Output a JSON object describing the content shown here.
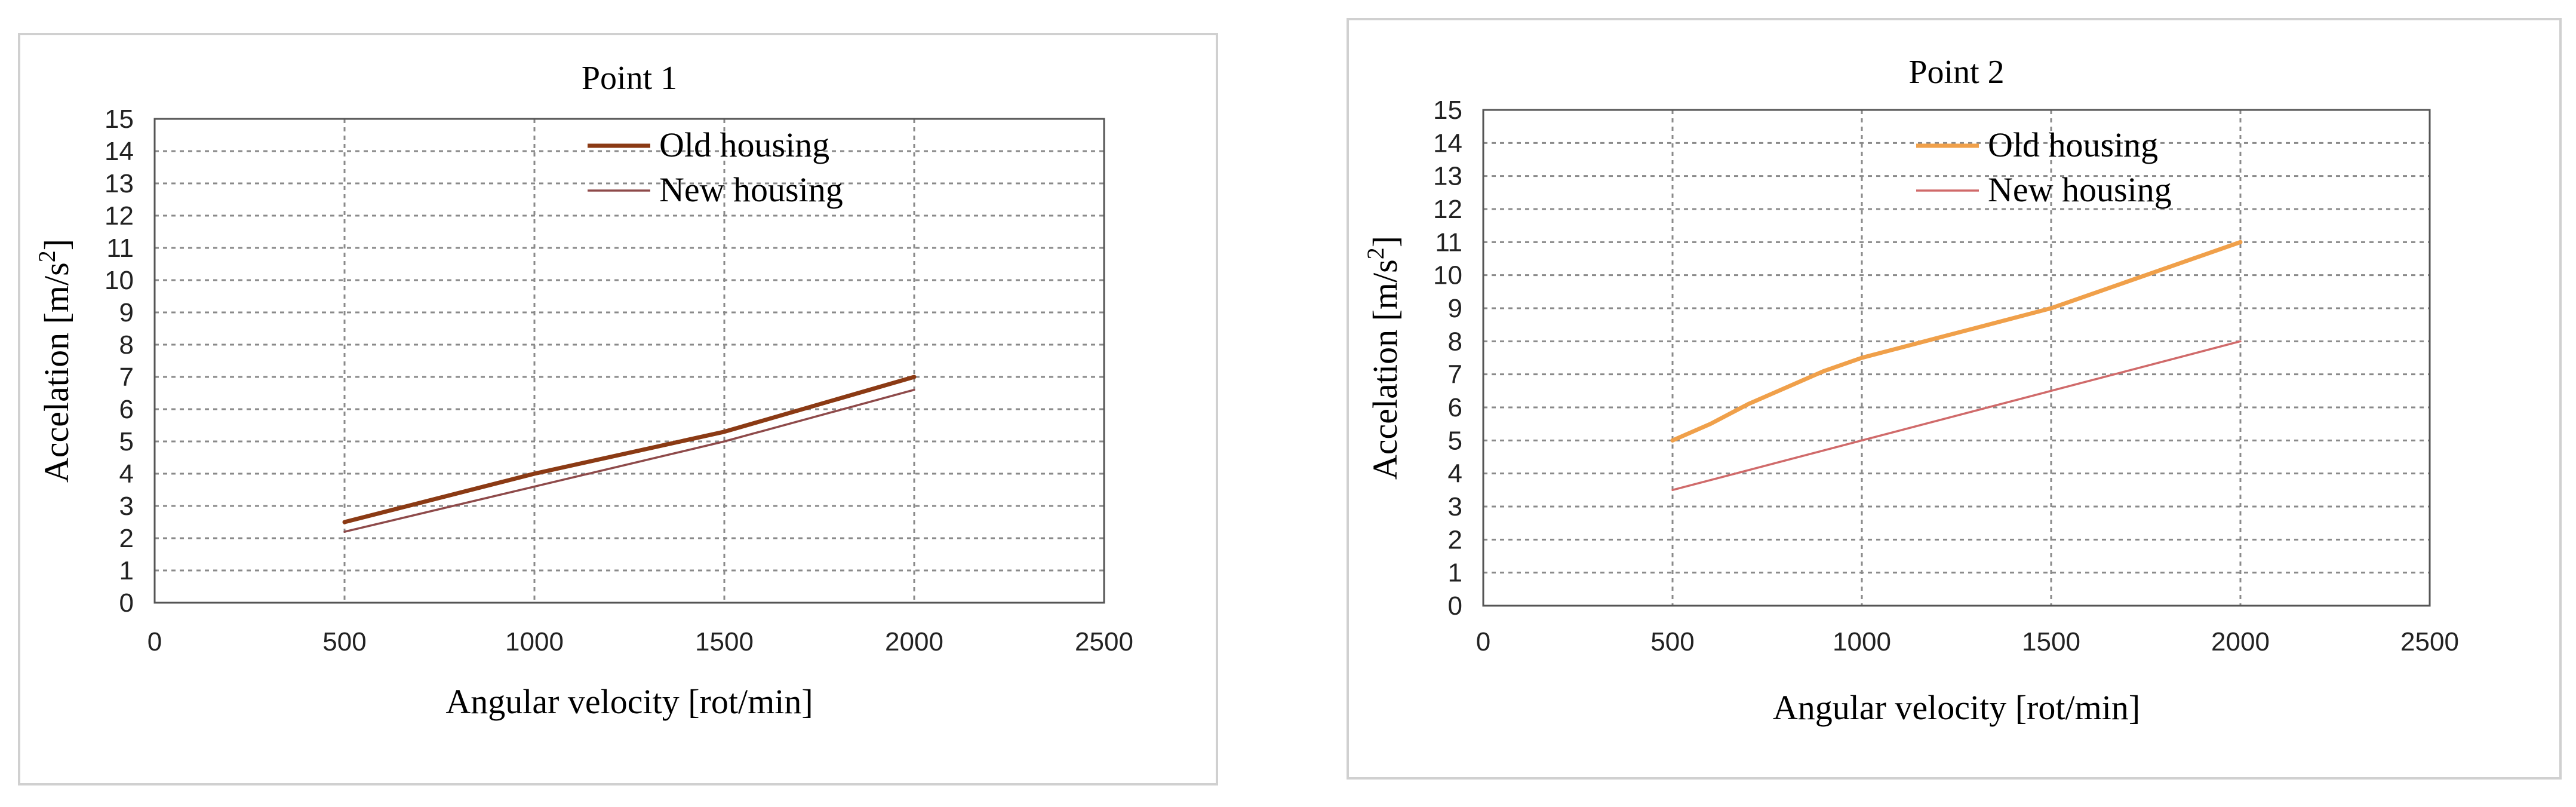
{
  "chart_data": [
    {
      "type": "line",
      "title": "Point 1",
      "xlabel": "Angular velocity [rot/min]",
      "ylabel": "Accelation [m/s",
      "ylabel_sup": "2",
      "ylabel_close": "]",
      "xlim": [
        0,
        2500
      ],
      "ylim": [
        0,
        15
      ],
      "xticks": [
        0,
        500,
        1000,
        1500,
        2000,
        2500
      ],
      "yticks": [
        0,
        1,
        2,
        3,
        4,
        5,
        6,
        7,
        8,
        9,
        10,
        11,
        12,
        13,
        14,
        15
      ],
      "grid": true,
      "legend_position": "top-center",
      "series": [
        {
          "name": "Old housing",
          "color": "#8B3A14",
          "width": 7,
          "x": [
            500,
            1000,
            1500,
            2000
          ],
          "y": [
            2.5,
            4.0,
            5.3,
            7.0
          ]
        },
        {
          "name": "New housing",
          "color": "#8E4A4A",
          "width": 3.5,
          "x": [
            500,
            1000,
            1500,
            2000
          ],
          "y": [
            2.2,
            3.6,
            5.0,
            6.6
          ]
        }
      ]
    },
    {
      "type": "line",
      "title": "Point 2",
      "xlabel": "Angular velocity [rot/min]",
      "ylabel": "Accelation [m/s",
      "ylabel_sup": "2",
      "ylabel_close": "]",
      "xlim": [
        0,
        2500
      ],
      "ylim": [
        0,
        15
      ],
      "xticks": [
        0,
        500,
        1000,
        1500,
        2000,
        2500
      ],
      "yticks": [
        0,
        1,
        2,
        3,
        4,
        5,
        6,
        7,
        8,
        9,
        10,
        11,
        12,
        13,
        14,
        15
      ],
      "grid": true,
      "legend_position": "top-center",
      "series": [
        {
          "name": "Old housing",
          "color": "#F0A04A",
          "width": 7,
          "x": [
            500,
            600,
            700,
            800,
            900,
            1000,
            1200,
            1500,
            1750,
            2000
          ],
          "y": [
            5.0,
            5.5,
            6.1,
            6.6,
            7.1,
            7.5,
            8.1,
            9.0,
            10.0,
            11.0
          ]
        },
        {
          "name": "New housing",
          "color": "#D06A6A",
          "width": 3.5,
          "x": [
            500,
            1000,
            1500,
            2000
          ],
          "y": [
            3.5,
            5.0,
            6.5,
            8.0
          ]
        }
      ]
    }
  ]
}
